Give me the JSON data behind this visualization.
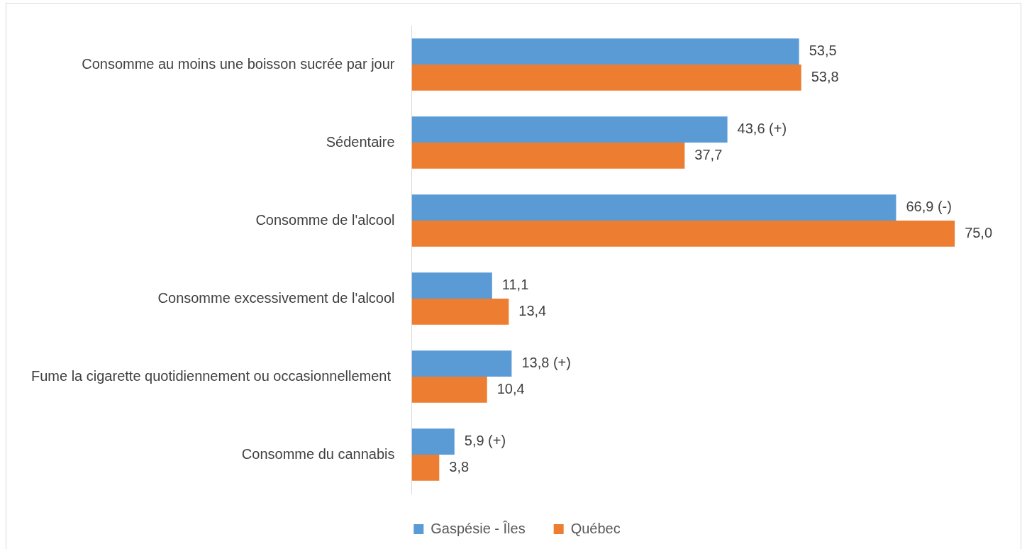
{
  "chart_data": {
    "type": "bar",
    "orientation": "horizontal",
    "categories": [
      "Consomme au moins une boisson sucrée par jour",
      "Sédentaire",
      "Consomme de l'alcool",
      "Consomme excessivement de l'alcool",
      "Fume la cigarette quotidiennement ou occasionnellement ",
      "Consomme du cannabis"
    ],
    "series": [
      {
        "name": "Gaspésie - Îles",
        "color": "#5b9bd5",
        "values": [
          53.5,
          43.6,
          66.9,
          11.1,
          13.8,
          5.9
        ],
        "value_labels": [
          "53,5",
          "43,6 (+)",
          "66,9 (-)",
          "11,1",
          "13,8 (+)",
          "5,9 (+)"
        ]
      },
      {
        "name": "Québec",
        "color": "#ed7d31",
        "values": [
          53.8,
          37.7,
          75.0,
          13.4,
          10.4,
          3.8
        ],
        "value_labels": [
          "53,8",
          "37,7",
          "75,0",
          "13,4",
          "10,4",
          "3,8"
        ]
      }
    ],
    "xlim": [
      0,
      84
    ],
    "tick_labels": "y",
    "grid": false,
    "legend": "bottom"
  }
}
